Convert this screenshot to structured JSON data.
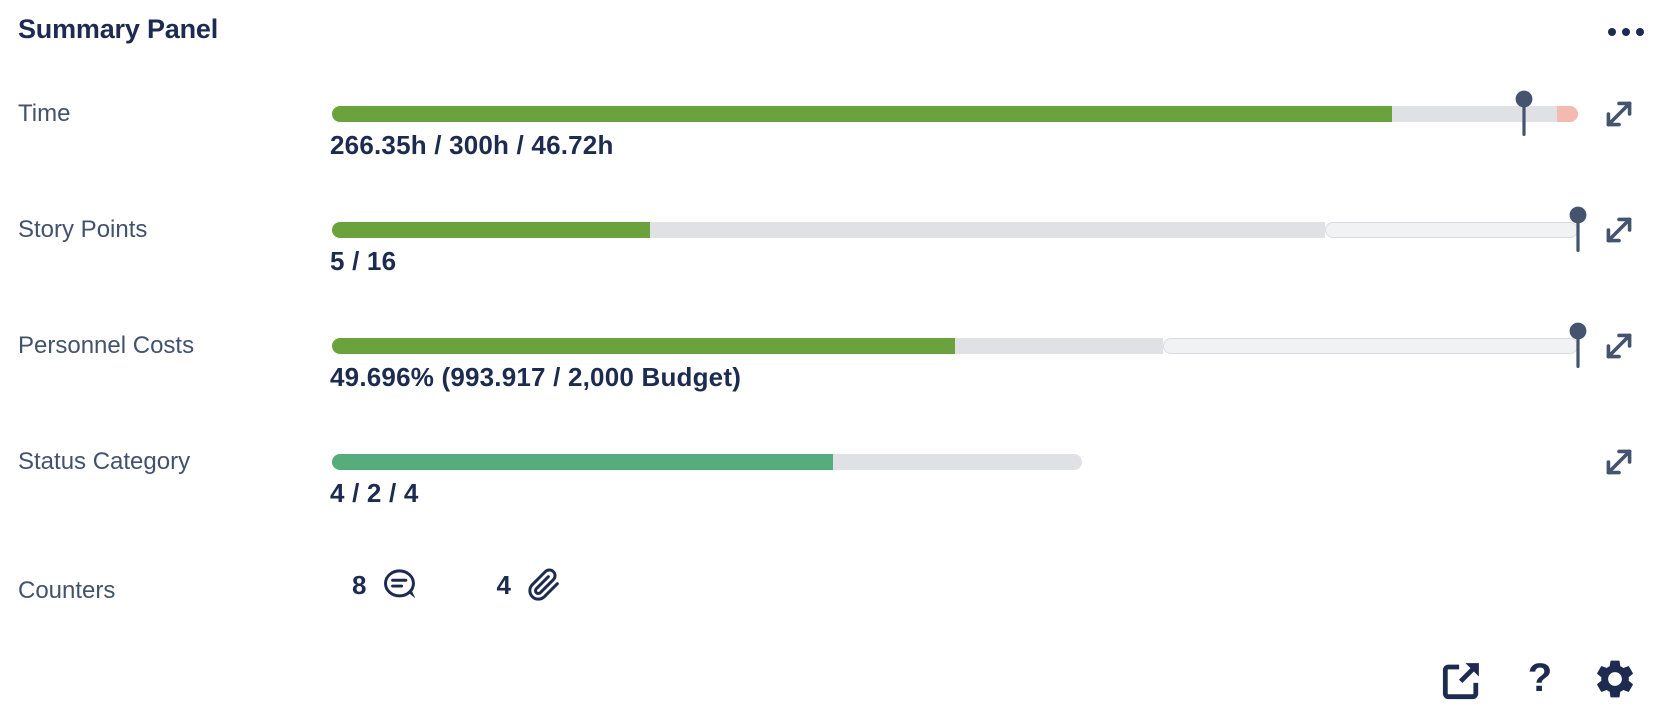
{
  "header": {
    "title": "Summary Panel",
    "menu_icon": "more-options-ellipsis"
  },
  "colors": {
    "text_navy": "#1d2b50",
    "label_slate": "#42526e",
    "progress_green": "#6aa23d",
    "status_green": "#56ad7b",
    "track_gray": "#dfe1e5",
    "track_light": "#f1f2f4",
    "over_budget_pink": "#f4b9b0",
    "pin_slate": "#44536e"
  },
  "rows": [
    {
      "label": "Time",
      "value": "266.35h / 300h / 46.72h",
      "bar": {
        "track_pct": 100,
        "pin_pct": 95.7,
        "segments": [
          {
            "name": "logged",
            "color": "#6aa23d",
            "pct": 85.1
          },
          {
            "name": "remaining",
            "color": "#dfe1e5",
            "pct": 13.2
          },
          {
            "name": "over-budget",
            "color": "#f4b9b0",
            "pct": 1.7
          }
        ]
      }
    },
    {
      "label": "Story Points",
      "value": "5 / 16",
      "bar": {
        "track_pct": 100,
        "pin_pct": 100,
        "segments": [
          {
            "name": "completed",
            "color": "#6aa23d",
            "pct": 25.5
          },
          {
            "name": "total",
            "color": "#dfe1e5",
            "pct": 54.2
          },
          {
            "name": "scale",
            "color": "#f1f2f4",
            "pct": 20.3,
            "outlined": true
          }
        ]
      }
    },
    {
      "label": "Personnel Costs",
      "value": "49.696% (993.917 / 2,000 Budget)",
      "bar": {
        "track_pct": 100,
        "pin_pct": 100,
        "segments": [
          {
            "name": "spent",
            "color": "#6aa23d",
            "pct": 50.0
          },
          {
            "name": "planned",
            "color": "#dfe1e5",
            "pct": 16.7
          },
          {
            "name": "budget-scale",
            "color": "#f1f2f4",
            "pct": 33.3,
            "outlined": true
          }
        ]
      }
    },
    {
      "label": "Status Category",
      "value": "4 / 2 / 4",
      "bar": {
        "track_pct": 60.2,
        "segments": [
          {
            "name": "done",
            "color": "#56ad7b",
            "pct": 66.8
          },
          {
            "name": "remaining",
            "color": "#dfe1e5",
            "pct": 33.2
          }
        ]
      }
    }
  ],
  "counters": {
    "label": "Counters",
    "items": [
      {
        "count": "8",
        "icon": "comments-icon"
      },
      {
        "count": "4",
        "icon": "attachments-icon"
      }
    ]
  },
  "footer": {
    "export_icon": "open-in-new-window",
    "help_glyph": "?",
    "settings_icon": "gear"
  }
}
